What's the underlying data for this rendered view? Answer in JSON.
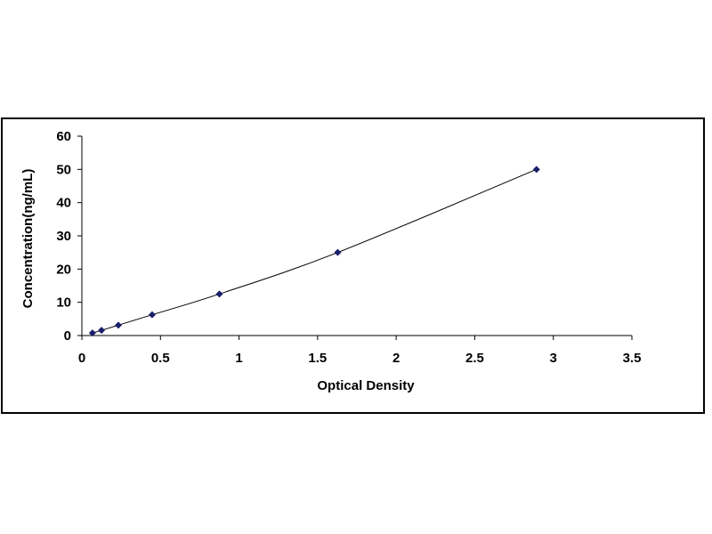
{
  "chart_data": {
    "type": "scatter",
    "title": "",
    "xlabel": "Optical Density",
    "ylabel": "Concentration(ng/mL)",
    "xlim": [
      0,
      3.5
    ],
    "ylim": [
      0,
      60
    ],
    "x_ticks": [
      "0",
      "0.5",
      "1",
      "1.5",
      "2",
      "2.5",
      "3",
      "3.5"
    ],
    "y_ticks": [
      "0",
      "10",
      "20",
      "30",
      "40",
      "50",
      "60"
    ],
    "grid": false,
    "legend": "none",
    "marker": "diamond",
    "trendline": "smooth curve through points",
    "colors": {
      "marker": "#1a1f6b",
      "line": "#000000",
      "axis": "#000000"
    },
    "series": [
      {
        "x": [
          0.067,
          0.125,
          0.232,
          0.447,
          0.875,
          1.628,
          2.893
        ],
        "y": [
          0.78,
          1.56,
          3.13,
          6.25,
          12.5,
          25,
          50
        ]
      }
    ]
  }
}
